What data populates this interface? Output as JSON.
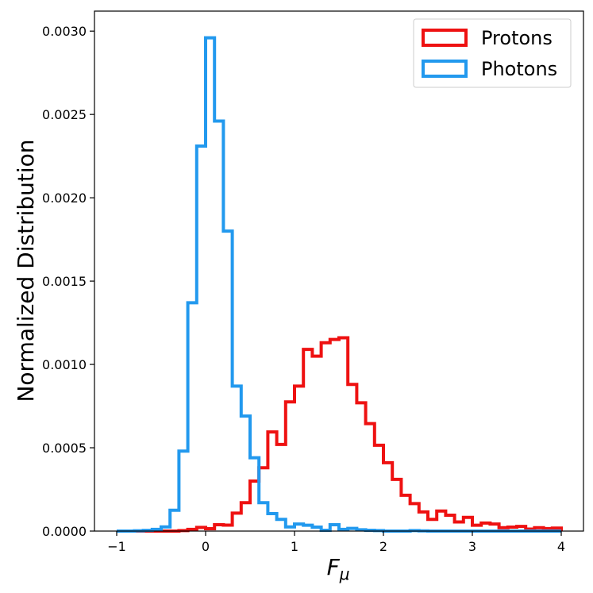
{
  "chart_data": {
    "type": "histogram",
    "title": "",
    "xlabel": "F",
    "xlabel_subscript": "μ",
    "ylabel": "Normalized Distribution",
    "xlim": [
      -1.25,
      4.25
    ],
    "ylim": [
      0,
      0.00312
    ],
    "bin_start": -1.0,
    "bin_width": 0.1,
    "x_ticks": [
      {
        "value": -1,
        "label": "−1"
      },
      {
        "value": 0,
        "label": "0"
      },
      {
        "value": 1,
        "label": "1"
      },
      {
        "value": 2,
        "label": "2"
      },
      {
        "value": 3,
        "label": "3"
      },
      {
        "value": 4,
        "label": "4"
      }
    ],
    "y_ticks": [
      {
        "value": 0,
        "label": "0.0000"
      },
      {
        "value": 0.0005,
        "label": "0.0005"
      },
      {
        "value": 0.001,
        "label": "0.0010"
      },
      {
        "value": 0.0015,
        "label": "0.0015"
      },
      {
        "value": 0.002,
        "label": "0.0020"
      },
      {
        "value": 0.0025,
        "label": "0.0025"
      },
      {
        "value": 0.003,
        "label": "0.0030"
      }
    ],
    "legend_position": "top-right",
    "grid": false,
    "series": [
      {
        "name": "Protons",
        "color": "#ee1111",
        "values": [
          0,
          0,
          0,
          0,
          0,
          0,
          0,
          3e-06,
          1e-05,
          2.2e-05,
          1.4e-05,
          3.8e-05,
          3.6e-05,
          0.000108,
          0.00017,
          0.0003,
          0.00038,
          0.000595,
          0.00052,
          0.000775,
          0.00087,
          0.00109,
          0.00105,
          0.00113,
          0.00115,
          0.00116,
          0.00088,
          0.00077,
          0.000645,
          0.000515,
          0.00041,
          0.00031,
          0.000215,
          0.000165,
          0.000115,
          7e-05,
          0.00012,
          9.5e-05,
          5.5e-05,
          8.2e-05,
          3.5e-05,
          4.8e-05,
          4.2e-05,
          2e-05,
          2.4e-05,
          2.8e-05,
          1.2e-05,
          2e-05,
          1.5e-05,
          1.8e-05
        ]
      },
      {
        "name": "Photons",
        "color": "#2299ee",
        "values": [
          0,
          0,
          2e-06,
          4e-06,
          1e-05,
          2.5e-05,
          0.000125,
          0.00048,
          0.00137,
          0.00231,
          0.00296,
          0.00246,
          0.0018,
          0.00087,
          0.00069,
          0.00044,
          0.00017,
          0.000105,
          7e-05,
          2.5e-05,
          4.2e-05,
          3.5e-05,
          2.4e-05,
          5e-06,
          3.8e-05,
          1e-05,
          1.6e-05,
          8e-06,
          5e-06,
          3e-06,
          0,
          0,
          0,
          3e-06,
          1e-06,
          0,
          0,
          0,
          0,
          0,
          0,
          0,
          0,
          0,
          0,
          0,
          0,
          0,
          0,
          0
        ]
      }
    ]
  }
}
